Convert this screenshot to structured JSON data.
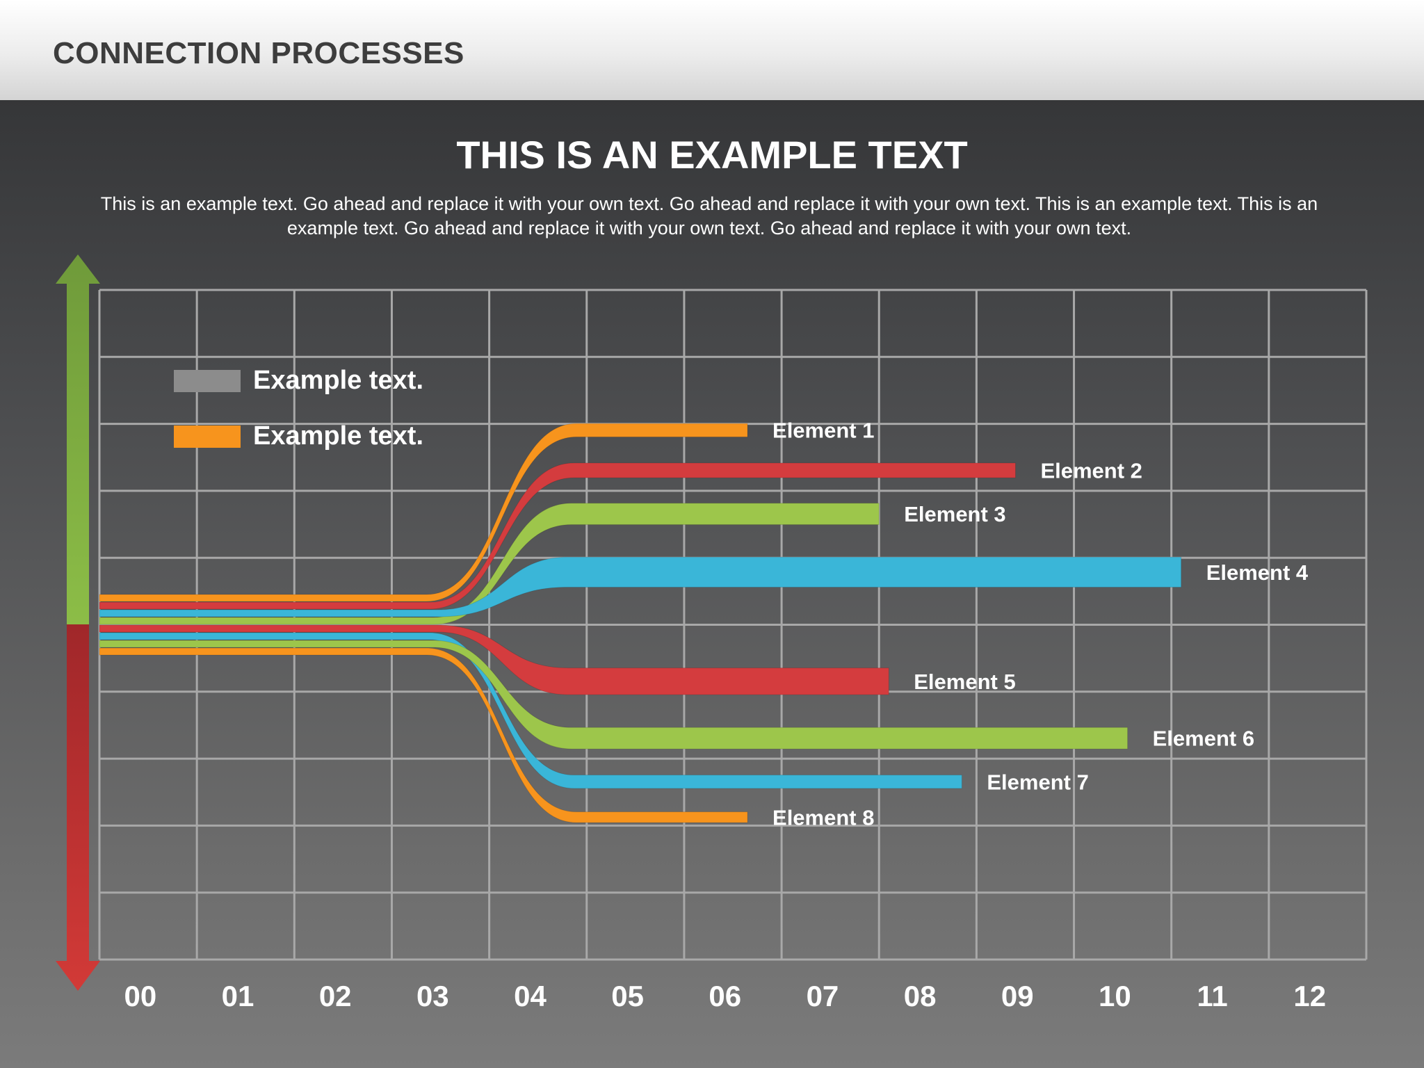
{
  "header": {
    "title": "CONNECTION PROCESSES"
  },
  "main": {
    "title": "THIS IS AN EXAMPLE TEXT",
    "subtitle": "This is an example text. Go ahead and replace it with your own text. Go ahead and replace it with your own text. This is an example text. This is an example text. Go ahead and replace it with your own text. Go ahead and replace it with your own text."
  },
  "colors": {
    "orange": "#f7941d",
    "red": "#d43c3e",
    "green": "#9dc64b",
    "blue": "#3ab6d8",
    "gray": "#8c8c8c",
    "arrow_up": "#8cbd47",
    "arrow_down": "#c1322f",
    "grid": "#a8a8a8"
  },
  "chart_data": {
    "type": "line",
    "categories": [
      "00",
      "01",
      "02",
      "03",
      "04",
      "05",
      "06",
      "07",
      "08",
      "09",
      "10",
      "11",
      "12"
    ],
    "legend": [
      {
        "label": "Example text",
        "color": "#8c8c8c"
      },
      {
        "label": "Example text",
        "color": "#f7941d"
      }
    ],
    "series": [
      {
        "name": "Element  1",
        "color": "#f7941d",
        "end": 6.3,
        "level": 2.9,
        "thickness": 0.2
      },
      {
        "name": "Element  2",
        "color": "#d43c3e",
        "end": 9.05,
        "level": 2.3,
        "thickness": 0.22
      },
      {
        "name": "Element  3",
        "color": "#9dc64b",
        "end": 7.65,
        "level": 1.65,
        "thickness": 0.32
      },
      {
        "name": "Element  4",
        "color": "#3ab6d8",
        "end": 10.75,
        "level": 0.78,
        "thickness": 0.45
      },
      {
        "name": "Element  5",
        "color": "#d43c3e",
        "end": 7.75,
        "level": -0.85,
        "thickness": 0.4
      },
      {
        "name": "Element  6",
        "color": "#9dc64b",
        "end": 10.2,
        "level": -1.7,
        "thickness": 0.32
      },
      {
        "name": "Element  7",
        "color": "#3ab6d8",
        "end": 8.5,
        "level": -2.35,
        "thickness": 0.2
      },
      {
        "name": "Element  8",
        "color": "#f7941d",
        "end": 6.3,
        "level": -2.88,
        "thickness": 0.16
      }
    ]
  }
}
